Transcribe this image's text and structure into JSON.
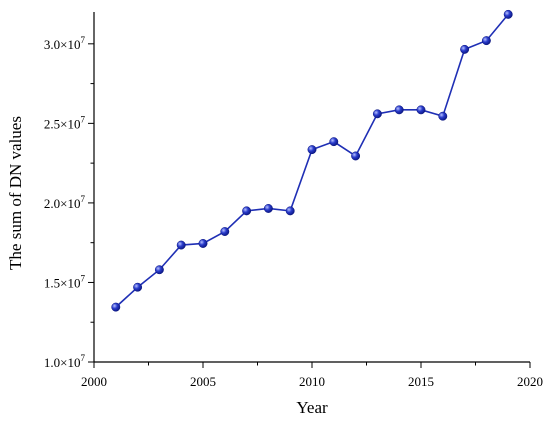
{
  "chart_data": {
    "type": "line",
    "title": "",
    "xlabel": "Year",
    "ylabel": "The sum of DN values",
    "xlim": [
      2000,
      2020
    ],
    "ylim": [
      10000000,
      32000000
    ],
    "x_ticks": [
      2000,
      2005,
      2010,
      2015,
      2020
    ],
    "x_tick_labels": [
      "2000",
      "2005",
      "2010",
      "2015",
      "2020"
    ],
    "y_ticks": [
      10000000,
      15000000,
      20000000,
      25000000,
      30000000
    ],
    "y_tick_mantissas": [
      "1.0",
      "1.5",
      "2.0",
      "2.5",
      "3.0"
    ],
    "y_tick_times": "×10",
    "y_tick_exponent": "7",
    "grid": false,
    "legend": "none",
    "series_color": "#1f2fb5",
    "x": [
      2001,
      2002,
      2003,
      2004,
      2005,
      2006,
      2007,
      2008,
      2009,
      2010,
      2011,
      2012,
      2013,
      2014,
      2015,
      2016,
      2017,
      2018,
      2019
    ],
    "y": [
      13450000,
      14700000,
      15800000,
      17350000,
      17450000,
      18200000,
      19500000,
      19650000,
      19500000,
      23350000,
      23850000,
      22950000,
      25600000,
      25850000,
      25850000,
      25450000,
      29650000,
      30200000,
      31850000
    ]
  }
}
